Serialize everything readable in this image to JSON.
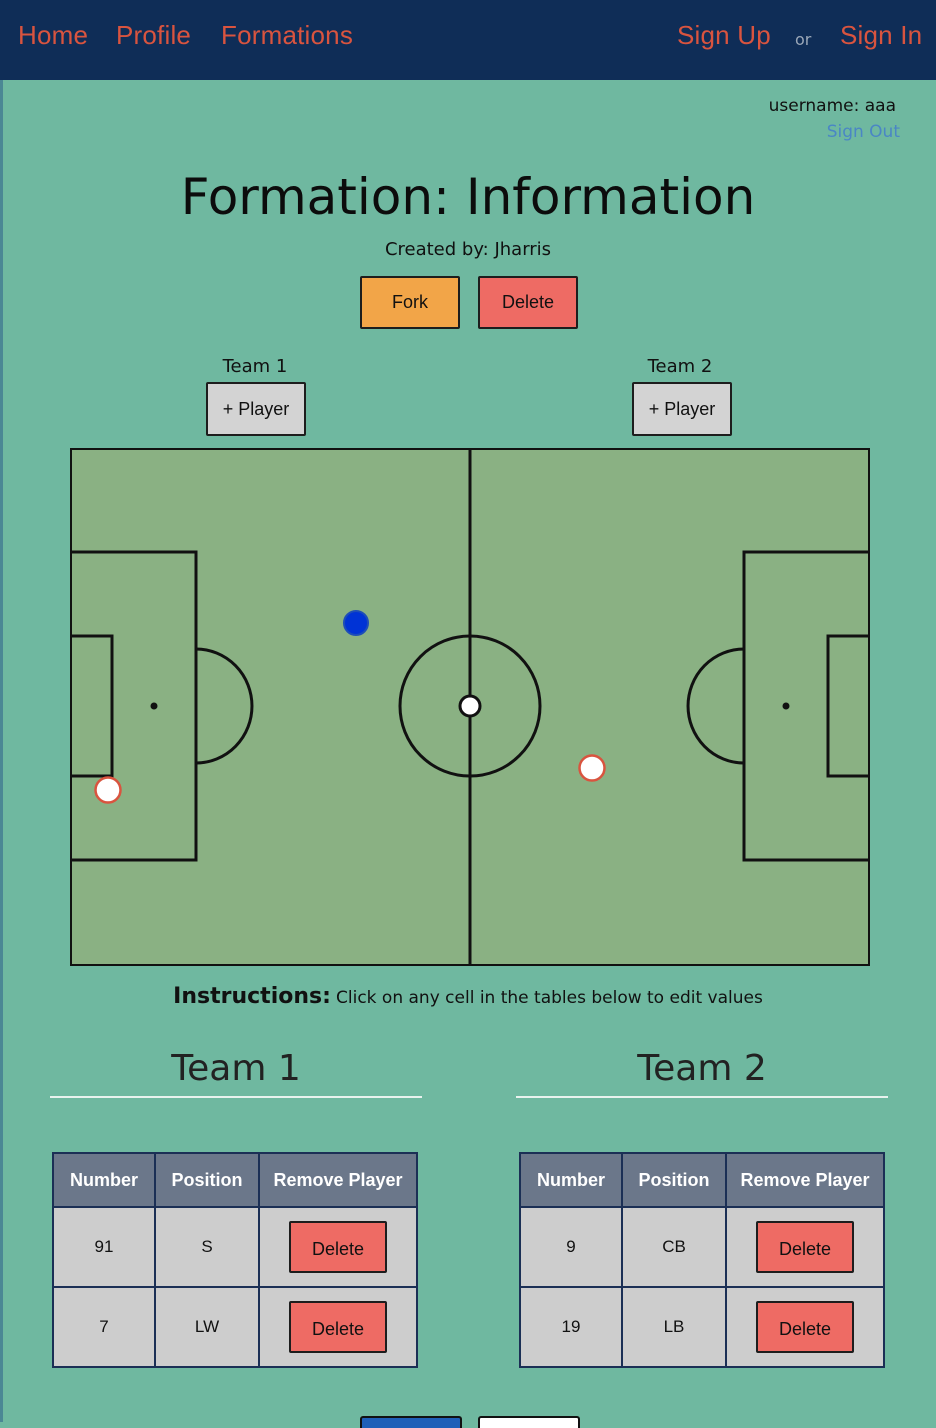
{
  "nav": {
    "home": "Home",
    "profile": "Profile",
    "formations": "Formations",
    "signup": "Sign Up",
    "or": "or",
    "signin": "Sign In"
  },
  "user": {
    "username_text": "username: aaa",
    "signout": "Sign Out"
  },
  "formation": {
    "title": "Formation: Information",
    "created_by": "Created by: Jharris",
    "fork_label": "Fork",
    "delete_label": "Delete"
  },
  "teams_bar": {
    "team1_label": "Team 1",
    "team2_label": "Team 2",
    "add_player_label": "+ Player"
  },
  "field": {
    "colors": {
      "grass": "#8ab183",
      "lines": "#111111",
      "team1_token": "#0033d6",
      "team2_token": "#ffffff",
      "team2_token_border": "#d9543f"
    }
  },
  "instructions": {
    "bold": "Instructions:",
    "text": "Click on any cell in the tables below to edit values"
  },
  "team1": {
    "heading": "Team 1",
    "columns": [
      "Number",
      "Position",
      "Remove Player"
    ],
    "rows": [
      {
        "number": "91",
        "position": "S",
        "action": "Delete"
      },
      {
        "number": "7",
        "position": "LW",
        "action": "Delete"
      }
    ]
  },
  "team2": {
    "heading": "Team 2",
    "columns": [
      "Number",
      "Position",
      "Remove Player"
    ],
    "rows": [
      {
        "number": "9",
        "position": "CB",
        "action": "Delete"
      },
      {
        "number": "19",
        "position": "LB",
        "action": "Delete"
      }
    ]
  }
}
